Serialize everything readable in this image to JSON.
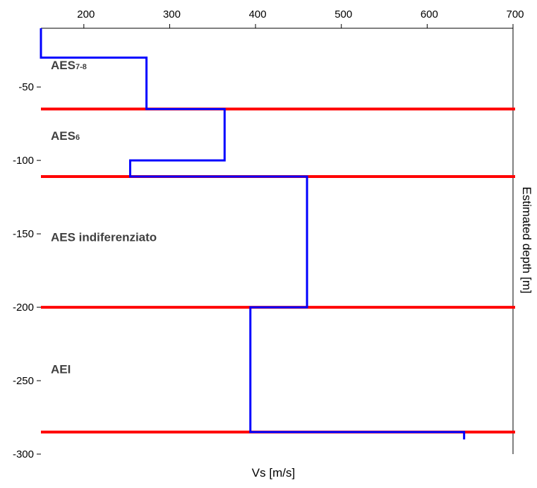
{
  "chart_data": {
    "type": "line",
    "xlabel": "Vs [m/s]",
    "ylabel": "Estimated depth [m]",
    "xlim": [
      150,
      700
    ],
    "ylim": [
      -300,
      -10
    ],
    "x_ticks": [
      "200",
      "300",
      "400",
      "500",
      "600",
      "700"
    ],
    "y_ticks": [
      "-50",
      "-100",
      "-150",
      "-200",
      "-250",
      "-300"
    ],
    "x_ticks_values": [
      200,
      300,
      400,
      500,
      600,
      700
    ],
    "y_ticks_values": [
      -50,
      -100,
      -150,
      -200,
      -250,
      -300
    ],
    "grid": false,
    "vs_profile": {
      "color": "#0000ff",
      "x": [
        150,
        150,
        273,
        273,
        364,
        364,
        254,
        254,
        460,
        460,
        394,
        394,
        643,
        643
      ],
      "y": [
        -10,
        -30,
        -30,
        -65,
        -65,
        -100,
        -100,
        -111,
        -111,
        -200,
        -200,
        -285,
        -285,
        -290
      ]
    },
    "boundaries": {
      "color": "#ff0000",
      "depths": [
        -65,
        -111,
        -200,
        -285
      ]
    },
    "units": [
      {
        "label": "AES",
        "sub": "7-8",
        "y": -38
      },
      {
        "label": "AES",
        "sub": "6",
        "y": -86
      },
      {
        "label": "AES indiferenziato",
        "sub": "",
        "y": -155
      },
      {
        "label": "AEI",
        "sub": "",
        "y": -245
      }
    ]
  }
}
